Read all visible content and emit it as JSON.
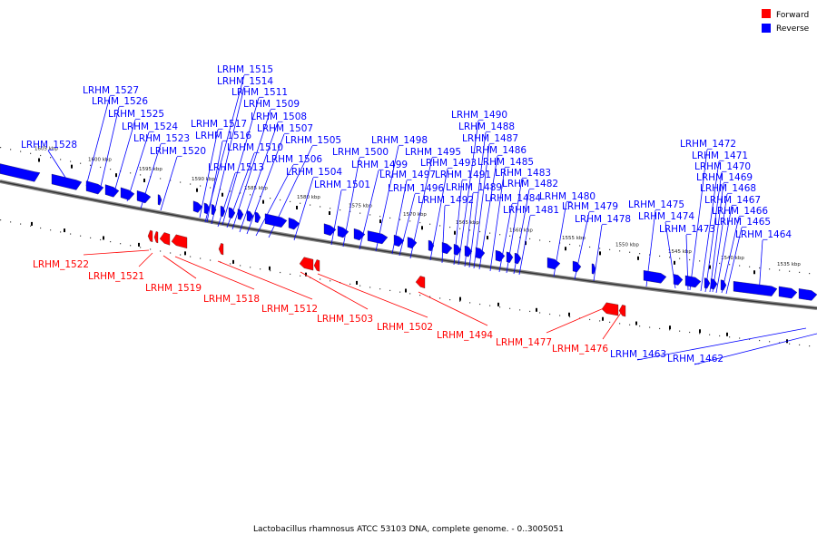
{
  "caption": "Lactobacillus rhamnosus ATCC 53103 DNA, complete genome. - 0..3005051",
  "legend": {
    "forward_label": "Forward",
    "reverse_label": "Reverse",
    "forward_color": "#ff0000",
    "reverse_color": "#0000ff"
  },
  "ticks": [
    "1605 kbp",
    "1600 kbp",
    "1595 kbp",
    "1590 kbp",
    "1585 kbp",
    "1580 kbp",
    "1575 kbp",
    "1570 kbp",
    "1565 kbp",
    "1560 kbp",
    "1555 kbp",
    "1550 kbp",
    "1545 kbp",
    "1540 kbp",
    "1535 kbp"
  ],
  "reverse_genes": [
    "LRHM_1528",
    "LRHM_1527",
    "LRHM_1526",
    "LRHM_1525",
    "LRHM_1524",
    "LRHM_1523",
    "LRHM_1520",
    "LRHM_1517",
    "LRHM_1516",
    "LRHM_1515",
    "LRHM_1514",
    "LRHM_1513",
    "LRHM_1511",
    "LRHM_1510",
    "LRHM_1509",
    "LRHM_1508",
    "LRHM_1507",
    "LRHM_1506",
    "LRHM_1505",
    "LRHM_1504",
    "LRHM_1501",
    "LRHM_1500",
    "LRHM_1499",
    "LRHM_1498",
    "LRHM_1497",
    "LRHM_1496",
    "LRHM_1495",
    "LRHM_1493",
    "LRHM_1492",
    "LRHM_1491",
    "LRHM_1490",
    "LRHM_1489",
    "LRHM_1488",
    "LRHM_1487",
    "LRHM_1486",
    "LRHM_1485",
    "LRHM_1484",
    "LRHM_1483",
    "LRHM_1482",
    "LRHM_1481",
    "LRHM_1480",
    "LRHM_1479",
    "LRHM_1478",
    "LRHM_1475",
    "LRHM_1474",
    "LRHM_1473",
    "LRHM_1472",
    "LRHM_1471",
    "LRHM_1470",
    "LRHM_1469",
    "LRHM_1468",
    "LRHM_1467",
    "LRHM_1466",
    "LRHM_1465",
    "LRHM_1464",
    "LRHM_1463",
    "LRHM_1462"
  ],
  "forward_genes": [
    "LRHM_1522",
    "LRHM_1521",
    "LRHM_1519",
    "LRHM_1518",
    "LRHM_1512",
    "LRHM_1503",
    "LRHM_1502",
    "LRHM_1494",
    "LRHM_1477",
    "LRHM_1476"
  ]
}
